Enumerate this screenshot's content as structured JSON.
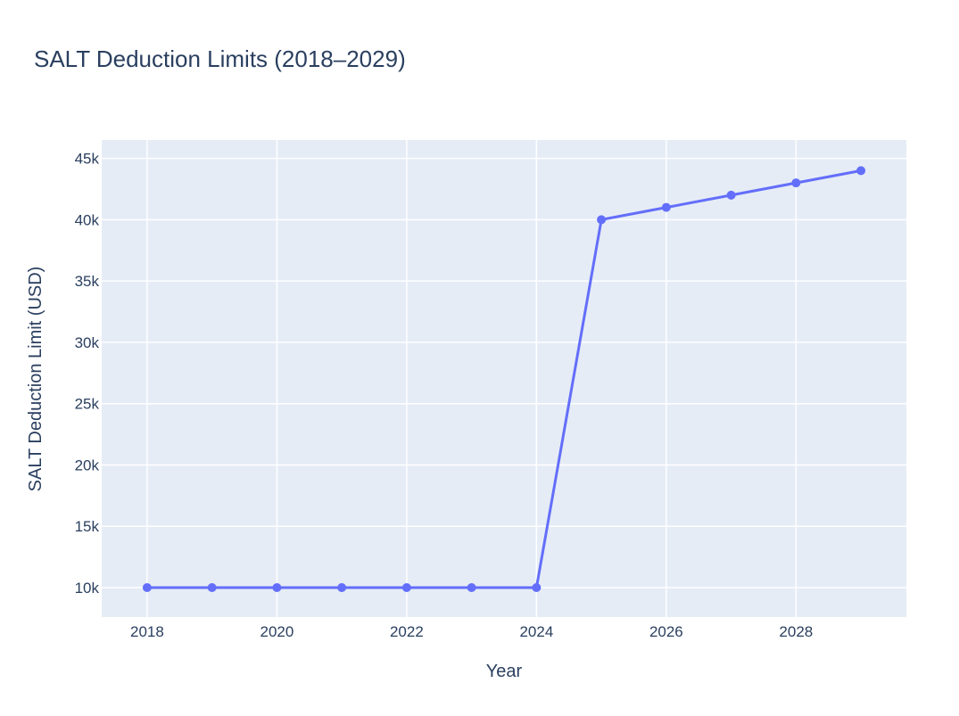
{
  "chart_data": {
    "type": "line",
    "title": "SALT Deduction Limits (2018–2029)",
    "xlabel": "Year",
    "ylabel": "SALT Deduction Limit (USD)",
    "x": [
      2018,
      2019,
      2020,
      2021,
      2022,
      2023,
      2024,
      2025,
      2026,
      2027,
      2028,
      2029
    ],
    "series": [
      {
        "values": [
          10000,
          10000,
          10000,
          10000,
          10000,
          10000,
          10000,
          40000,
          41000,
          42000,
          43000,
          44000
        ],
        "color": "#636efa"
      }
    ],
    "xlim": [
      2017.3,
      2029.7
    ],
    "ylim": [
      7600,
      46500
    ],
    "x_ticks": [
      2018,
      2020,
      2022,
      2024,
      2026,
      2028
    ],
    "x_tick_labels": [
      "2018",
      "2020",
      "2022",
      "2024",
      "2026",
      "2028"
    ],
    "y_ticks": [
      10000,
      15000,
      20000,
      25000,
      30000,
      35000,
      40000,
      45000
    ],
    "y_tick_labels": [
      "10k",
      "15k",
      "20k",
      "25k",
      "30k",
      "35k",
      "40k",
      "45k"
    ],
    "grid": true,
    "legend": "none",
    "plot_background": "#e5ecf6",
    "markers": true
  }
}
